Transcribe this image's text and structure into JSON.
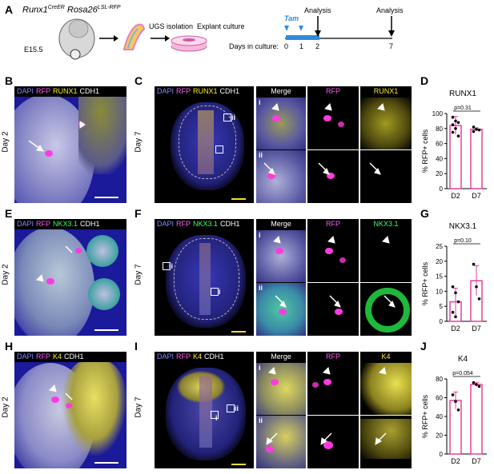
{
  "panels": {
    "A": "A",
    "B": "B",
    "C": "C",
    "D": "D",
    "E": "E",
    "F": "F",
    "G": "G",
    "H": "H",
    "I": "I",
    "J": "J"
  },
  "schematic": {
    "genotype_a": "Runx1",
    "genotype_a_sup": "CreER",
    "genotype_b": "Rosa26",
    "genotype_b_sup": "LSL-RFP",
    "age": "E15.5",
    "step1": "UGS isolation",
    "step2": "Explant culture",
    "tam": "Tam",
    "analysis1": "Analysis",
    "analysis2": "Analysis",
    "days_label": "Days in culture:",
    "ticks": [
      "0",
      "1",
      "2",
      "7"
    ]
  },
  "channels": {
    "dapi": "DAPI",
    "rfp": "RFP",
    "runx1": "RUNX1",
    "cdh1": "CDH1",
    "nkx": "NKX3.1",
    "k4": "K4"
  },
  "tiles": {
    "merge": "Merge",
    "rfp": "RFP",
    "runx1": "RUNX1",
    "nkx": "NKX3.1",
    "k4": "K4",
    "i": "i",
    "ii": "ii"
  },
  "days": {
    "day2": "Day 2",
    "day7": "Day 7"
  },
  "colors": {
    "dapi": "#2a2acc",
    "rfp": "#ff2ad8",
    "yellow": "#f0e020",
    "green": "#22cc44",
    "bar_edge": "#e8409a"
  },
  "chart_data": [
    {
      "type": "bar",
      "title": "RUNX1",
      "annotation": "p=0.31",
      "ylabel": "% RFP+ cells",
      "categories": [
        "D2",
        "D7"
      ],
      "values": [
        84,
        79
      ],
      "errors": [
        12,
        2
      ],
      "ylim": [
        0,
        100
      ],
      "yticks": [
        "0",
        "20",
        "40",
        "60",
        "80",
        "100"
      ],
      "points": [
        [
          95,
          90,
          88,
          85,
          80,
          70,
          75
        ],
        [
          82,
          79,
          78,
          76
        ]
      ]
    },
    {
      "type": "bar",
      "title": "NKX3.1",
      "annotation": "p=0.10",
      "ylabel": "% RFP+ cells",
      "categories": [
        "D2",
        "D7"
      ],
      "values": [
        6.5,
        13.5
      ],
      "errors": [
        4.5,
        5
      ],
      "ylim": [
        0,
        25
      ],
      "yticks": [
        "0",
        "5",
        "10",
        "15",
        "20",
        "25"
      ],
      "points": [
        [
          11.5,
          9.5,
          6.5,
          3,
          1.5
        ],
        [
          19,
          11.5,
          7.5
        ]
      ]
    },
    {
      "type": "bar",
      "title": "K4",
      "annotation": "p=0.054",
      "ylabel": "% RFP+ cells",
      "categories": [
        "D2",
        "D7"
      ],
      "values": [
        57,
        74
      ],
      "errors": [
        9,
        2
      ],
      "ylim": [
        0,
        80
      ],
      "yticks": [
        "0",
        "20",
        "40",
        "60",
        "80"
      ],
      "points": [
        [
          63,
          56,
          47
        ],
        [
          76,
          74,
          72
        ]
      ]
    }
  ]
}
